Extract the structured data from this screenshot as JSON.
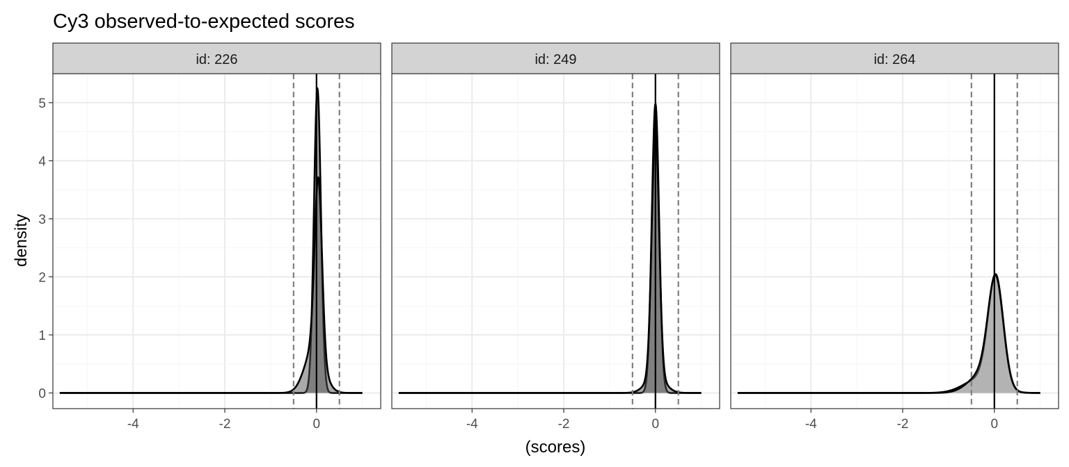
{
  "chart_data": {
    "type": "area",
    "title": "Cy3 observed-to-expected scores",
    "xlabel": "(scores)",
    "ylabel": "density",
    "xlim": [
      -5.75,
      1.4
    ],
    "ylim": [
      -0.27,
      5.5
    ],
    "x_ticks": [
      -4,
      -2,
      0
    ],
    "y_ticks": [
      0,
      1,
      2,
      3,
      4,
      5
    ],
    "grid": true,
    "facet_label_prefix": "id: ",
    "reference_lines": {
      "solid": [
        0
      ],
      "dashed": [
        -0.5,
        0.5
      ]
    },
    "x_range": [
      -5.6,
      1.0
    ],
    "colors": {
      "strip_fill": "#d3d3d3",
      "curve": "#000000",
      "dashed": "#7f7f7f",
      "grid_major": "#ebebeb",
      "grid_minor": "#f5f5f5"
    },
    "panels": [
      {
        "id": "226",
        "fill": "#555555",
        "series": [
          {
            "components": [
              {
                "w": 1.0,
                "mu": 0.02,
                "sd": 0.076
              }
            ]
          },
          {
            "components": [
              {
                "w": 0.6,
                "mu": 0.04,
                "sd": 0.08
              },
              {
                "w": 0.4,
                "mu": -0.05,
                "sd": 0.2
              }
            ]
          }
        ]
      },
      {
        "id": "249",
        "fill": "#555555",
        "series": [
          {
            "components": [
              {
                "w": 1.0,
                "mu": 0.0,
                "sd": 0.08
              }
            ]
          },
          {
            "components": [
              {
                "w": 0.85,
                "mu": 0.0,
                "sd": 0.08
              },
              {
                "w": 0.15,
                "mu": 0.0,
                "sd": 0.2
              }
            ]
          }
        ]
      },
      {
        "id": "264",
        "fill": "#999999",
        "series": [
          {
            "components": [
              {
                "w": 0.78,
                "mu": 0.03,
                "sd": 0.165
              },
              {
                "w": 0.22,
                "mu": -0.3,
                "sd": 0.35
              }
            ]
          },
          {
            "components": [
              {
                "w": 0.75,
                "mu": 0.03,
                "sd": 0.165
              },
              {
                "w": 0.25,
                "mu": -0.25,
                "sd": 0.3
              }
            ]
          }
        ]
      }
    ]
  }
}
